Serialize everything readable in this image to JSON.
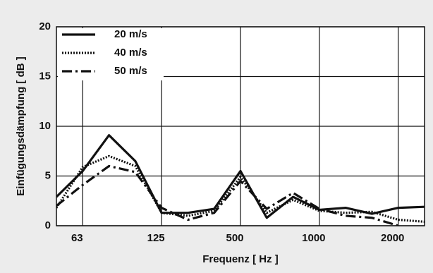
{
  "chart_data": {
    "type": "line",
    "xlabel": "Frequenz  [ Hz ]",
    "ylabel": "Einfügungsdämpfung  [ dB ]",
    "categories": [
      null,
      "63",
      null,
      null,
      "125",
      null,
      null,
      "500",
      null,
      null,
      "1000",
      null,
      null,
      "2000",
      null
    ],
    "series": [
      {
        "name": "20 m/s",
        "color": "#111111",
        "style": "solid",
        "values": [
          2.9,
          5.5,
          9.1,
          6.5,
          1.3,
          1.3,
          1.7,
          5.5,
          0.8,
          2.9,
          1.6,
          1.8,
          1.2,
          1.8,
          1.9
        ]
      },
      {
        "name": "40 m/s",
        "color": "#111111",
        "style": "dotted",
        "values": [
          1.8,
          5.9,
          7.0,
          6.0,
          1.3,
          1.0,
          1.5,
          4.9,
          1.3,
          2.6,
          1.5,
          1.3,
          1.4,
          0.6,
          0.4
        ]
      },
      {
        "name": "50 m/s",
        "color": "#111111",
        "style": "dashdot",
        "values": [
          2.0,
          4.1,
          6.0,
          5.4,
          1.8,
          0.6,
          1.3,
          4.5,
          1.7,
          3.3,
          1.7,
          1.0,
          0.8,
          0.0,
          null
        ]
      }
    ],
    "ylim": [
      0,
      20
    ],
    "yticks": [
      0,
      5,
      10,
      15,
      20
    ],
    "grid": true,
    "legend": "upper-left"
  }
}
